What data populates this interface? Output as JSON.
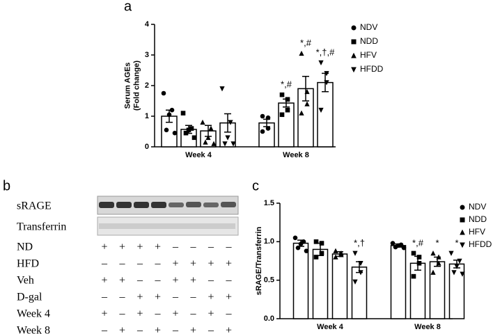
{
  "panel_labels": [
    "a",
    "b",
    "c"
  ],
  "chart_data": [
    {
      "type": "bar",
      "ylabel": [
        "Serum AGEs",
        "(Fold change)"
      ],
      "categories": [
        "Week 4",
        "Week 8"
      ],
      "ylim": [
        0,
        4
      ],
      "yticks": [
        0,
        1,
        2,
        3,
        4
      ],
      "legend": "right",
      "series": [
        {
          "name": "NDV",
          "color": "#000000",
          "marker": "circle",
          "values": [
            1.0,
            0.78
          ],
          "errors": [
            0.2,
            0.12
          ],
          "points": [
            [
              1.75,
              1.2,
              1.05,
              0.55,
              0.45
            ],
            [
              1.0,
              0.95,
              0.6,
              0.5
            ]
          ],
          "annotations": [
            null,
            null
          ]
        },
        {
          "name": "NDD",
          "color": "#000000",
          "marker": "square",
          "values": [
            0.57,
            1.43
          ],
          "errors": [
            0.13,
            0.13
          ],
          "points": [
            [
              1.1,
              0.6,
              0.55,
              0.45,
              0.3
            ],
            [
              1.7,
              1.55,
              1.2,
              1.05
            ]
          ],
          "annotations": [
            null,
            "*,#"
          ]
        },
        {
          "name": "HFV",
          "color": "#000000",
          "marker": "triangle-up",
          "values": [
            0.52,
            1.9
          ],
          "errors": [
            0.18,
            0.4
          ],
          "points": [
            [
              0.8,
              0.6,
              0.3,
              0.15,
              0.1
            ],
            [
              3.05,
              1.8,
              1.4,
              1.1
            ]
          ],
          "annotations": [
            null,
            "*,#"
          ]
        },
        {
          "name": "HFDD",
          "color": "#000000",
          "marker": "triangle-down",
          "values": [
            0.78,
            2.1
          ],
          "errors": [
            0.3,
            0.3
          ],
          "points": [
            [
              1.9,
              0.8,
              0.3,
              0.1,
              0.1
            ],
            [
              2.75,
              2.4,
              2.1,
              1.2
            ]
          ],
          "annotations": [
            null,
            "*,†,#"
          ]
        }
      ]
    },
    {
      "type": "bar",
      "ylabel": [
        "sRAGE/Transferrin"
      ],
      "categories": [
        "Week 4",
        "Week 8"
      ],
      "ylim": [
        0,
        1.5
      ],
      "yticks": [
        {
          "value": 0,
          "label": "0.0"
        },
        {
          "value": 0.5,
          "label": "0.5"
        },
        {
          "value": 1,
          "label": "1.0"
        },
        {
          "value": 1.5,
          "label": "1.5"
        }
      ],
      "legend": "right",
      "series": [
        {
          "name": "NDV",
          "color": "#000000",
          "marker": "circle",
          "values": [
            0.98,
            0.95
          ],
          "errors": [
            0.04,
            0.02
          ],
          "points": [
            [
              1.05,
              1.0,
              0.97,
              0.92,
              0.88
            ],
            [
              0.98,
              0.96,
              0.95,
              0.93,
              0.92
            ]
          ],
          "annotations": [
            null,
            null
          ]
        },
        {
          "name": "NDD",
          "color": "#000000",
          "marker": "square",
          "values": [
            0.9,
            0.72
          ],
          "errors": [
            0.08,
            0.09
          ],
          "points": [
            [
              1.0,
              0.98,
              0.85,
              0.8
            ],
            [
              0.85,
              0.8,
              0.72,
              0.55
            ]
          ],
          "annotations": [
            null,
            "*,#"
          ]
        },
        {
          "name": "HFV",
          "color": "#000000",
          "marker": "triangle-up",
          "values": [
            0.84,
            0.74
          ],
          "errors": [
            0.03,
            0.06
          ],
          "points": [
            [
              0.88,
              0.85,
              0.83,
              0.8
            ],
            [
              0.85,
              0.8,
              0.72,
              0.6
            ]
          ],
          "annotations": [
            null,
            "*"
          ]
        },
        {
          "name": "HFDD",
          "color": "#000000",
          "marker": "triangle-down",
          "values": [
            0.67,
            0.71
          ],
          "errors": [
            0.07,
            0.05
          ],
          "points": [
            [
              0.85,
              0.72,
              0.6,
              0.48
            ],
            [
              0.85,
              0.75,
              0.68,
              0.6,
              0.58
            ]
          ],
          "annotations": [
            "*,†",
            "*"
          ]
        }
      ]
    }
  ],
  "blot": {
    "bands": [
      "sRAGE",
      "Transferrin"
    ],
    "conditions": [
      {
        "label": "ND",
        "signs": [
          "+",
          "+",
          "+",
          "+",
          "–",
          "–",
          "–",
          "–"
        ]
      },
      {
        "label": "HFD",
        "signs": [
          "–",
          "–",
          "–",
          "–",
          "+",
          "+",
          "+",
          "+"
        ]
      },
      {
        "label": "Veh",
        "signs": [
          "+",
          "+",
          "–",
          "–",
          "+",
          "+",
          "–",
          "–"
        ]
      },
      {
        "label": "D-gal",
        "signs": [
          "–",
          "–",
          "+",
          "+",
          "–",
          "–",
          "+",
          "+"
        ]
      },
      {
        "label": "Week 4",
        "signs": [
          "+",
          "–",
          "+",
          "–",
          "+",
          "–",
          "+",
          "–"
        ]
      },
      {
        "label": "Week 8",
        "signs": [
          "–",
          "+",
          "–",
          "+",
          "–",
          "+",
          "–",
          "+"
        ]
      }
    ]
  }
}
